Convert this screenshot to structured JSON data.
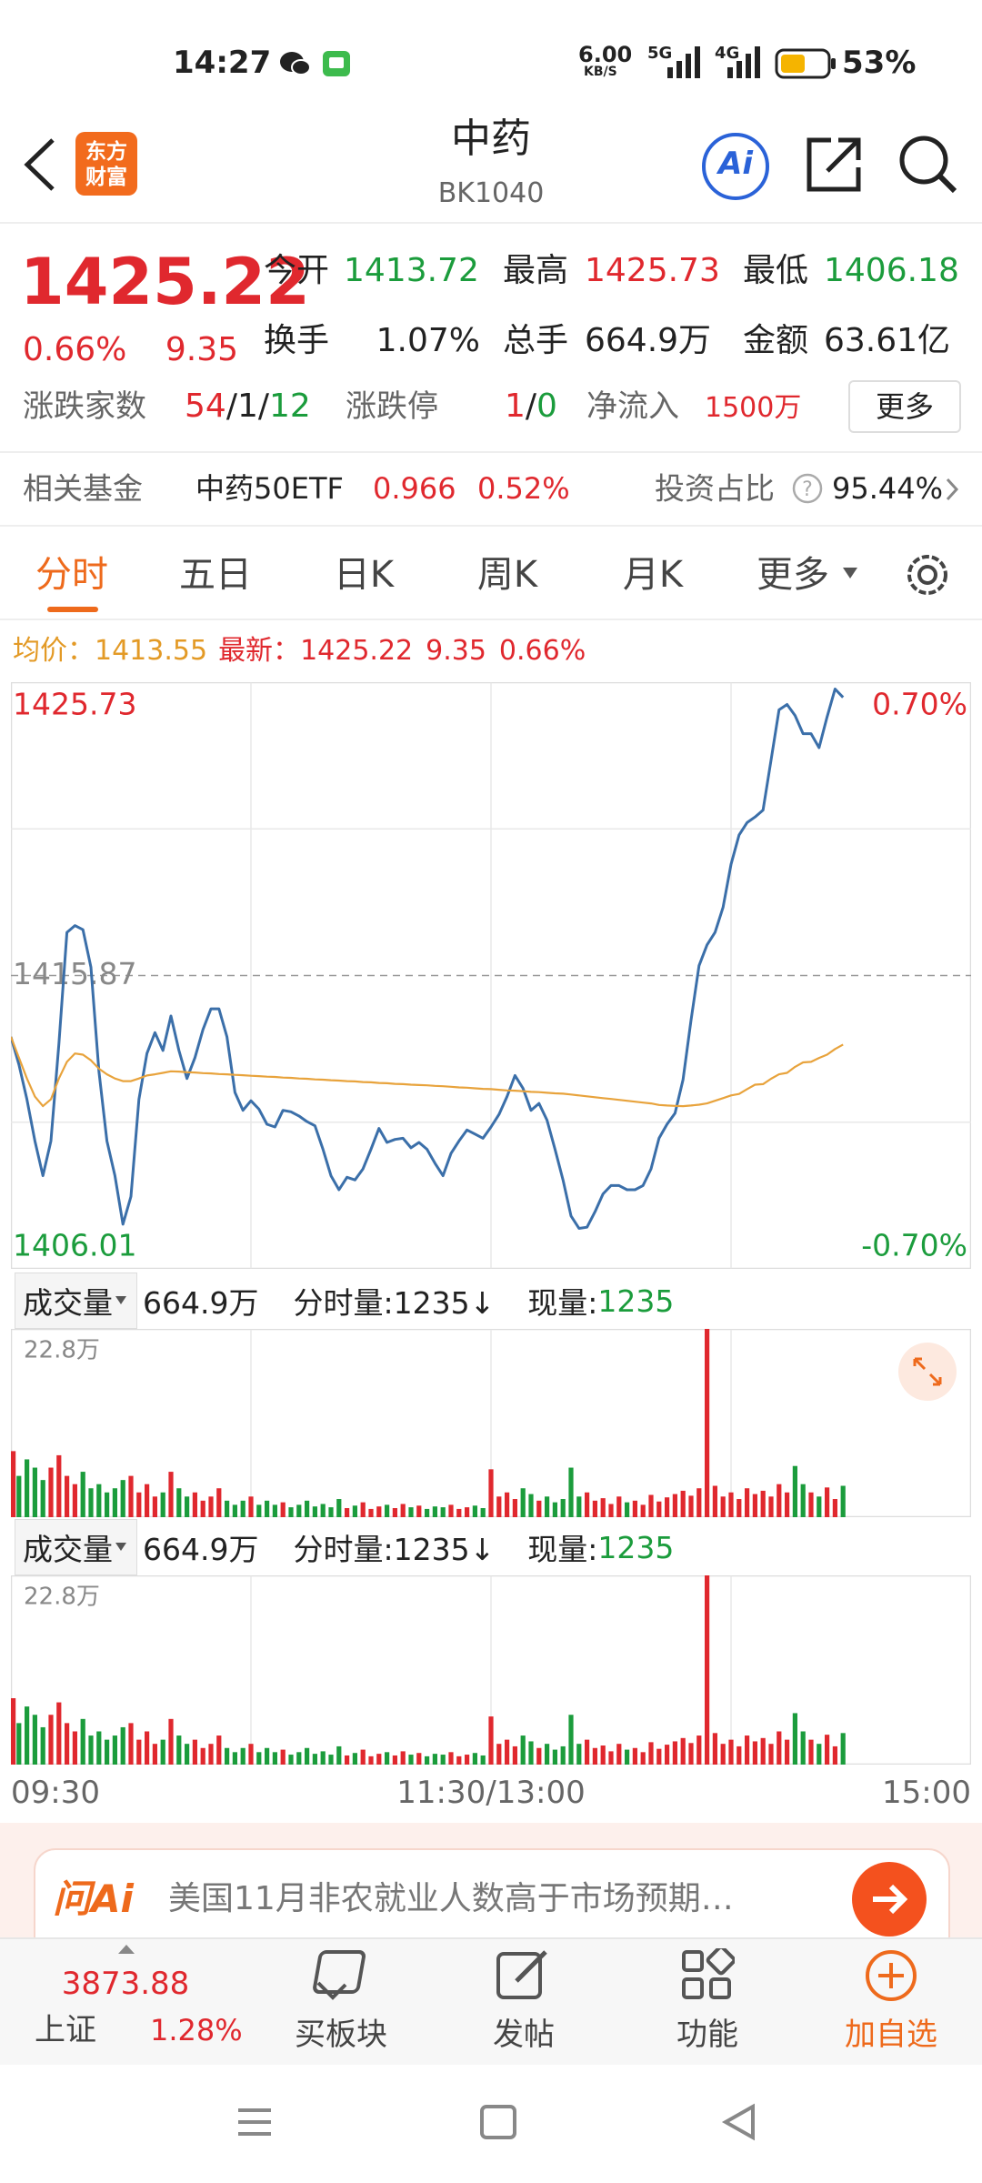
{
  "status_bar": {
    "time": "14:27",
    "net_speed": "6.00",
    "net_unit": "KB/S",
    "net1": "5G",
    "net2": "4G",
    "battery": "53%"
  },
  "header": {
    "logo_line1": "东方",
    "logo_line2": "财富",
    "title": "中药",
    "code": "BK1040",
    "ai": "Ai"
  },
  "quote": {
    "price": "1425.22",
    "change_pct": "0.66%",
    "change": "9.35",
    "fields": [
      [
        "今开",
        "1413.72"
      ],
      [
        "最高",
        "1425.73"
      ],
      [
        "最低",
        "1406.18"
      ],
      [
        "换手",
        "1.07%"
      ],
      [
        "总手",
        "664.9万"
      ],
      [
        "金额",
        "63.61亿"
      ]
    ],
    "adv_decl": {
      "label": "涨跌家数",
      "up": "54",
      "flat": "1",
      "down": "12",
      "sep": "/"
    },
    "limit": {
      "label": "涨跌停",
      "up": "1",
      "down": "0"
    },
    "inflow": {
      "label": "净流入",
      "value": "1500万"
    },
    "more": "更多"
  },
  "fund": {
    "label": "相关基金",
    "name": "中药50ETF",
    "price": "0.966",
    "pct": "0.52%",
    "ratio_label": "投资占比",
    "ratio": "95.44%"
  },
  "tabs": [
    "分时",
    "五日",
    "日K",
    "周K",
    "月K",
    "更多"
  ],
  "legend": {
    "avg_label": "均价：",
    "avg": "1413.55",
    "latest_label": "最新："
  },
  "chart_data": [
    {
      "type": "line",
      "ylim": [
        1406.01,
        1425.73
      ],
      "yticks": [
        1406.01,
        1415.87,
        1425.73
      ],
      "y2lim": [
        -0.7,
        0.7
      ],
      "y2ticks": [
        {
          "value": 0.7,
          "label": "0.70%"
        },
        {
          "value": -0.7,
          "label": "-0.70%"
        }
      ],
      "up_color": "#e0282e",
      "down_color": "#1b9c3c",
      "series": [
        {
          "color": "#3b6fa9",
          "values": [
            1413.81,
            1412.88,
            1411.71,
            1410.31,
            1409.14,
            1410.31,
            1413.58,
            1417.32,
            1417.55,
            1417.41,
            1416.15,
            1412.65,
            1410.31,
            1409.14,
            1407.51,
            1408.44,
            1411.71,
            1413.25,
            1413.95,
            1413.35,
            1414.51,
            1413.35,
            1412.41,
            1413.11,
            1414.05,
            1414.75,
            1414.75,
            1413.81,
            1411.94,
            1411.34,
            1411.66,
            1411.38,
            1410.87,
            1410.78,
            1411.34,
            1411.29,
            1411.15,
            1410.96,
            1410.82,
            1410.03,
            1409.14,
            1408.67,
            1409.09,
            1409.0,
            1409.37,
            1410.03,
            1410.73,
            1410.26,
            1410.36,
            1410.4,
            1410.08,
            1410.26,
            1410.03,
            1409.56,
            1409.14,
            1409.89,
            1410.31,
            1410.68,
            1410.54,
            1410.4,
            1410.78,
            1411.2,
            1411.8,
            1412.51,
            1412.08,
            1411.34,
            1411.57,
            1411.01,
            1410.03,
            1409.0,
            1407.79,
            1407.37,
            1407.41,
            1407.93,
            1408.53,
            1408.81,
            1408.81,
            1408.67,
            1408.67,
            1408.81,
            1409.37,
            1410.4,
            1410.87,
            1411.24,
            1412.37,
            1414.37,
            1416.2,
            1416.9,
            1417.32,
            1418.16,
            1419.61,
            1420.59,
            1421.01,
            1421.2,
            1421.43,
            1423.11,
            1424.8,
            1424.98,
            1424.61,
            1424.0,
            1424.0,
            1423.53,
            1424.56,
            1425.5,
            1425.22,
            null,
            null,
            null,
            null,
            null,
            null,
            null,
            null,
            null,
            null,
            null,
            null,
            null,
            null,
            null,
            null
          ]
        },
        {
          "color": "#e8a33c",
          "values": [
            1413.81,
            1413.11,
            1412.41,
            1411.8,
            1411.48,
            1411.71,
            1412.41,
            1412.97,
            1413.25,
            1413.21,
            1413.02,
            1412.74,
            1412.55,
            1412.41,
            1412.32,
            1412.32,
            1412.41,
            1412.51,
            1412.55,
            1412.6,
            1412.65,
            1412.64,
            1412.62,
            1412.61,
            1412.59,
            1412.58,
            1412.56,
            1412.55,
            1412.53,
            1412.52,
            1412.5,
            1412.49,
            1412.47,
            1412.46,
            1412.44,
            1412.43,
            1412.41,
            1412.4,
            1412.38,
            1412.37,
            1412.35,
            1412.34,
            1412.32,
            1412.31,
            1412.29,
            1412.28,
            1412.26,
            1412.25,
            1412.23,
            1412.22,
            1412.2,
            1412.19,
            1412.18,
            1412.16,
            1412.15,
            1412.13,
            1412.11,
            1412.1,
            1412.08,
            1412.06,
            1412.05,
            1412.03,
            1412.01,
            1412.0,
            1411.98,
            1411.96,
            1411.95,
            1411.93,
            1411.91,
            1411.9,
            1411.87,
            1411.84,
            1411.81,
            1411.78,
            1411.75,
            1411.72,
            1411.69,
            1411.66,
            1411.63,
            1411.6,
            1411.57,
            1411.52,
            1411.5,
            1411.49,
            1411.48,
            1411.5,
            1411.53,
            1411.57,
            1411.66,
            1411.75,
            1411.84,
            1411.89,
            1412.05,
            1412.2,
            1412.22,
            1412.4,
            1412.55,
            1412.6,
            1412.8,
            1412.95,
            1412.97,
            1413.1,
            1413.21,
            1413.4,
            1413.55,
            null,
            null,
            null,
            null,
            null,
            null,
            null,
            null,
            null,
            null,
            null,
            null,
            null,
            null,
            null,
            null
          ]
        }
      ]
    },
    {
      "type": "bar",
      "ylim": [
        0,
        22.8
      ],
      "yticks": [
        {
          "value": 22.8,
          "label": "22.8万"
        }
      ],
      "values": [
        8,
        5,
        7,
        6,
        4.5,
        6,
        7.5,
        5,
        4,
        5.5,
        3.5,
        4,
        3,
        3.5,
        4.5,
        5,
        3,
        4,
        2.5,
        3,
        5.5,
        3.5,
        2.5,
        3,
        2,
        2.5,
        3.5,
        2,
        1.5,
        2,
        2.5,
        1.5,
        2,
        1.5,
        1.8,
        1.2,
        1.5,
        2,
        1.3,
        1.6,
        1.2,
        2.2,
        1.1,
        1.4,
        1.8,
        1,
        1.3,
        1.5,
        1.1,
        1.6,
        1.2,
        1.4,
        1,
        1.3,
        1.2,
        1.5,
        1,
        1.2,
        1.4,
        1.1,
        5.8,
        2.5,
        3,
        2.2,
        3.5,
        2.8,
        2,
        2.5,
        1.8,
        2.2,
        6,
        2.5,
        3,
        2,
        2.3,
        1.6,
        2.5,
        1.8,
        2,
        1.5,
        2.7,
        1.9,
        2.4,
        2.8,
        3.2,
        2.6,
        3.5,
        22.8,
        3.8,
        2.5,
        3,
        2.2,
        3.5,
        2.8,
        3.2,
        2.5,
        4,
        3,
        6.2,
        4,
        3,
        2.5,
        3.6,
        2.2,
        3.8,
        null,
        null,
        null,
        null,
        null,
        null,
        null,
        null,
        null,
        null,
        null,
        null,
        null,
        null,
        null,
        null
      ]
    }
  ],
  "volume_header": {
    "selector": "成交量",
    "total": "664.9万",
    "period_vol": "分时量:1235↓",
    "now_label": "现量:",
    "now": "1235"
  },
  "time_axis": [
    "09:30",
    "11:30/13:00",
    "15:00"
  ],
  "ad": {
    "brand": "问Ai",
    "text": "美国11月非农就业人数高于市场预期…"
  },
  "bottom_nav": {
    "index_value": "3873.88",
    "index_name": "上证",
    "index_pct": "1.28%",
    "items": [
      "买板块",
      "发帖",
      "功能",
      "加自选"
    ]
  }
}
